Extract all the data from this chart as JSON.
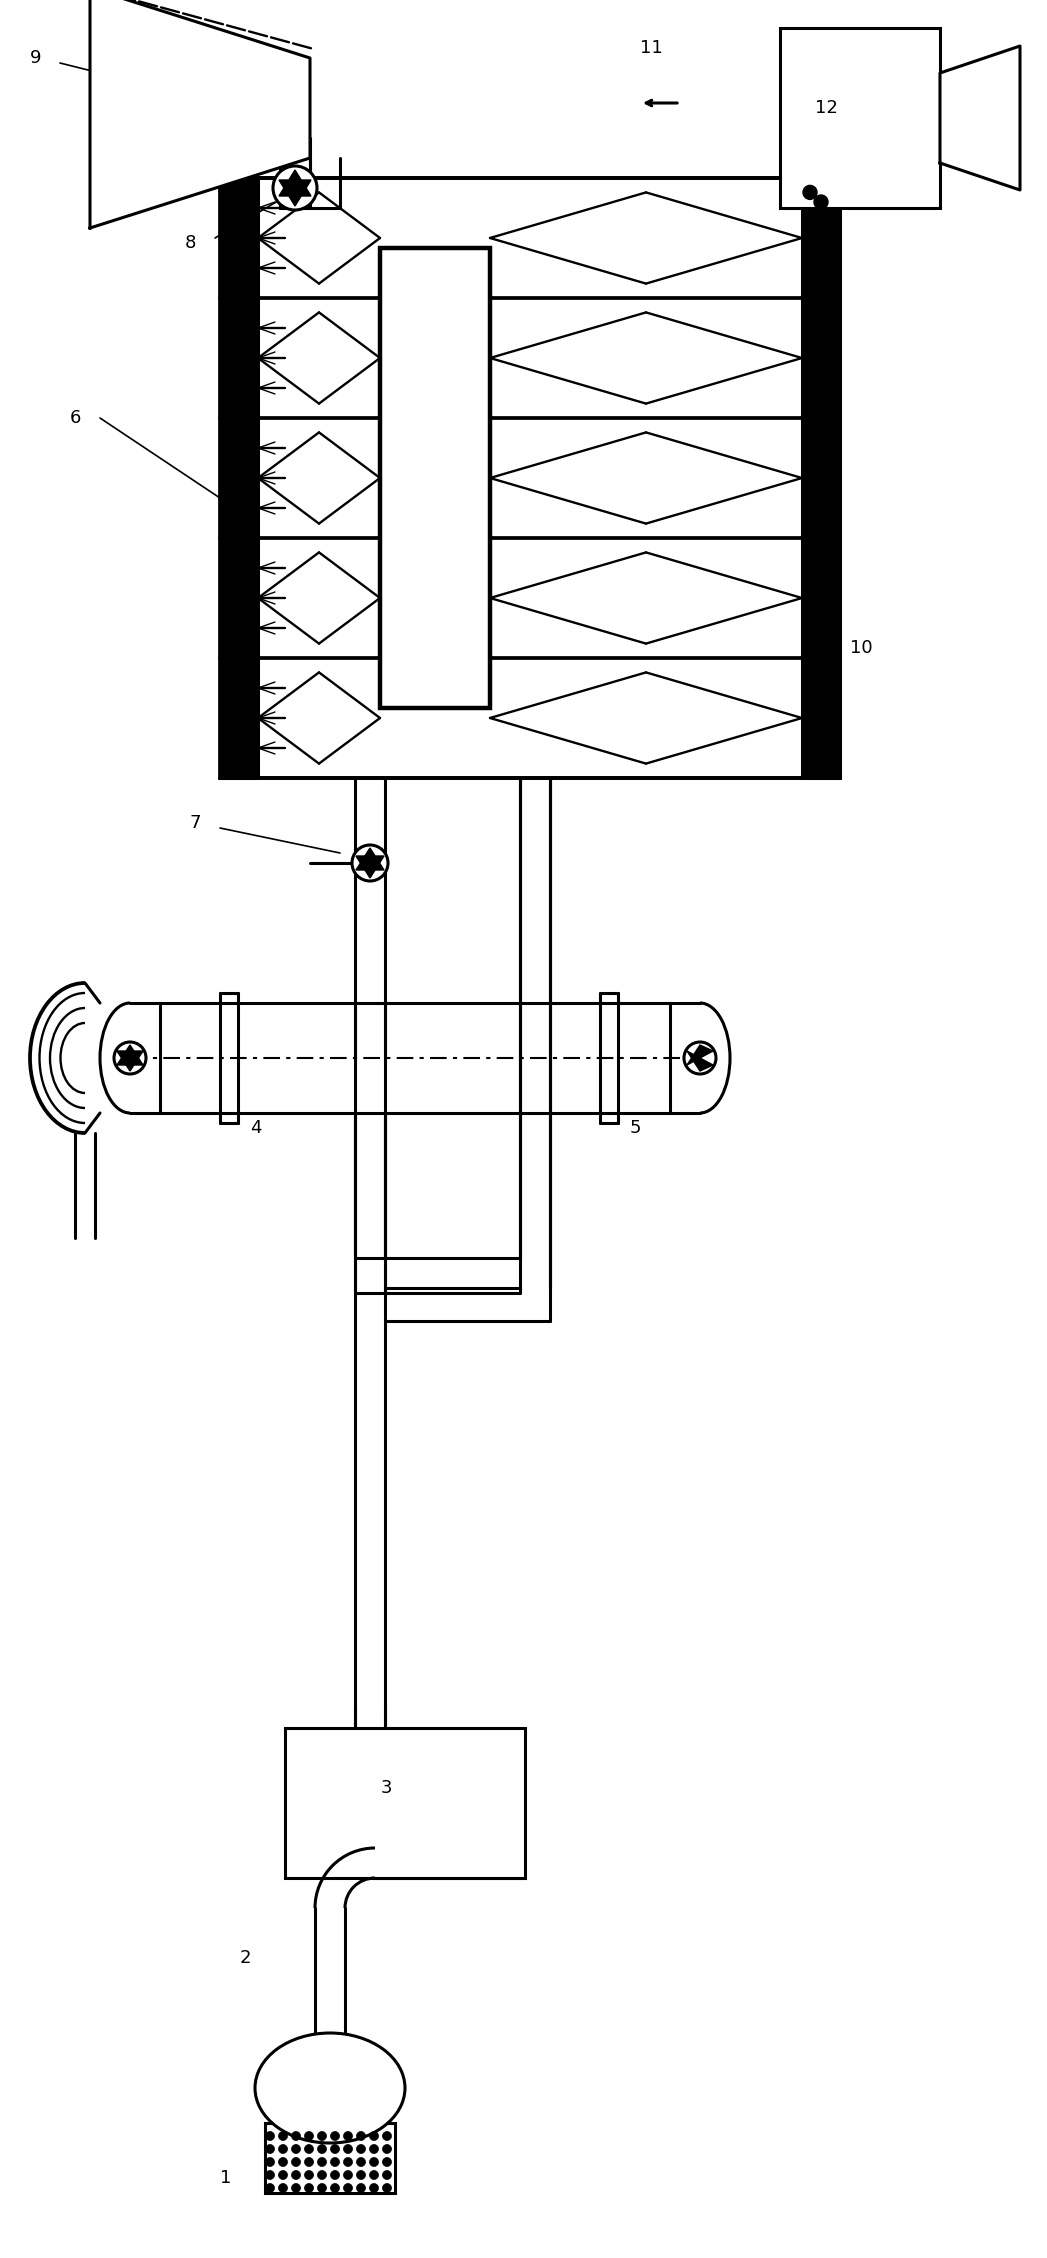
{
  "bg_color": "#ffffff",
  "line_color": "#000000",
  "lw": 2.2,
  "fig_width": 10.47,
  "fig_height": 22.58
}
